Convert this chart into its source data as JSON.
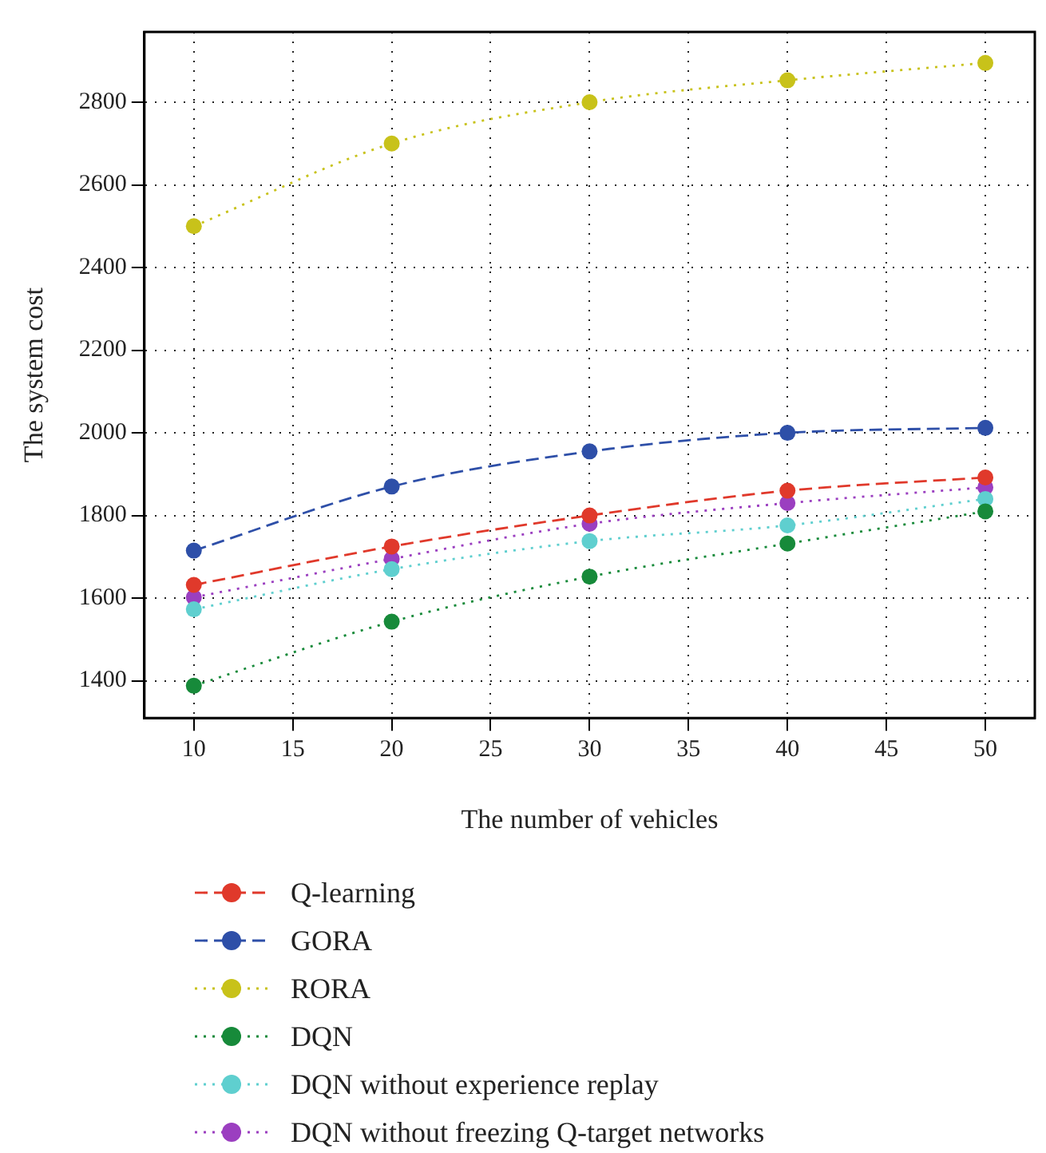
{
  "chart_data": {
    "type": "line",
    "xlabel": "The number of vehicles",
    "ylabel": "The system cost",
    "x": [
      10,
      20,
      30,
      40,
      50
    ],
    "xlim": [
      7.5,
      52.5
    ],
    "xticks": [
      10,
      15,
      20,
      25,
      30,
      35,
      40,
      45,
      50
    ],
    "ylim": [
      1310,
      2970
    ],
    "yticks": [
      1400,
      1600,
      1800,
      2000,
      2200,
      2400,
      2600,
      2800
    ],
    "grid": true,
    "legend": "bottom",
    "marker": "circle",
    "series": [
      {
        "name": "Q-learning",
        "color": "#e0392b",
        "line_style": "dashed",
        "values": [
          1632,
          1725,
          1800,
          1860,
          1892
        ]
      },
      {
        "name": "GORA",
        "color": "#2e4fa8",
        "line_style": "dashed",
        "values": [
          1715,
          1870,
          1955,
          2000,
          2012
        ]
      },
      {
        "name": "RORA",
        "color": "#c8c21a",
        "line_style": "dotted",
        "values": [
          2500,
          2700,
          2800,
          2853,
          2895
        ]
      },
      {
        "name": "DQN",
        "color": "#178a3a",
        "line_style": "dotted",
        "values": [
          1388,
          1543,
          1652,
          1732,
          1810
        ]
      },
      {
        "name": "DQN without experience replay",
        "color": "#5fcfcf",
        "line_style": "dotted",
        "values": [
          1573,
          1670,
          1738,
          1776,
          1840
        ]
      },
      {
        "name": "DQN without freezing Q-target networks",
        "color": "#9b3fc0",
        "line_style": "dotted",
        "values": [
          1602,
          1695,
          1780,
          1830,
          1868
        ]
      }
    ]
  }
}
